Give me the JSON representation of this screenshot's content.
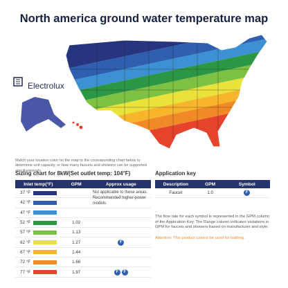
{
  "header": {
    "title": "North america ground water temperature map"
  },
  "logo": {
    "text": "Electrolux"
  },
  "caption": "Match your location color on the map to the corresponding chart below to determine unit capacity, or how many faucets and showers can be supported simultaneously.",
  "sizing_chart": {
    "title": "Sizing chart for 8kW(Set outlet temp: 104°F)",
    "columns": [
      "Inlet temp(°F)",
      "GPM",
      "Approx usage"
    ],
    "rows": [
      {
        "inlet": "37 °F",
        "color": "#27357f"
      },
      {
        "inlet": "42 °F",
        "color": "#2f5fae"
      },
      {
        "inlet": "47 °F",
        "color": "#3c91d2"
      },
      {
        "inlet": "52 °F",
        "color": "#2b9745",
        "gpm": "1.02"
      },
      {
        "inlet": "57 °F",
        "color": "#7dc143",
        "gpm": "1.13"
      },
      {
        "inlet": "62 °F",
        "color": "#e9e23b",
        "gpm": "1.27",
        "symbols": [
          "F"
        ]
      },
      {
        "inlet": "67 °F",
        "color": "#f6b52b",
        "gpm": "1.44"
      },
      {
        "inlet": "72 °F",
        "color": "#f08a26",
        "gpm": "1.66"
      },
      {
        "inlet": "77 °F",
        "color": "#e6432c",
        "gpm": "1.97",
        "symbols": [
          "F",
          "F"
        ]
      }
    ],
    "note": "Not applicable to these areas. Recommended higher-power models."
  },
  "application_key": {
    "title": "Application key",
    "columns": [
      "Description",
      "GPM",
      "Symbol"
    ],
    "rows": [
      {
        "description": "Faucet",
        "gpm": "1.0",
        "symbol": "F"
      }
    ],
    "note": "The flow rate for each symbol is represented in the GPM column of the Application Key. The Range column indicates variations in GPM for faucets and showers based on manufacturer and style.",
    "attention": "Attention: This product cannot be used for bathing."
  }
}
